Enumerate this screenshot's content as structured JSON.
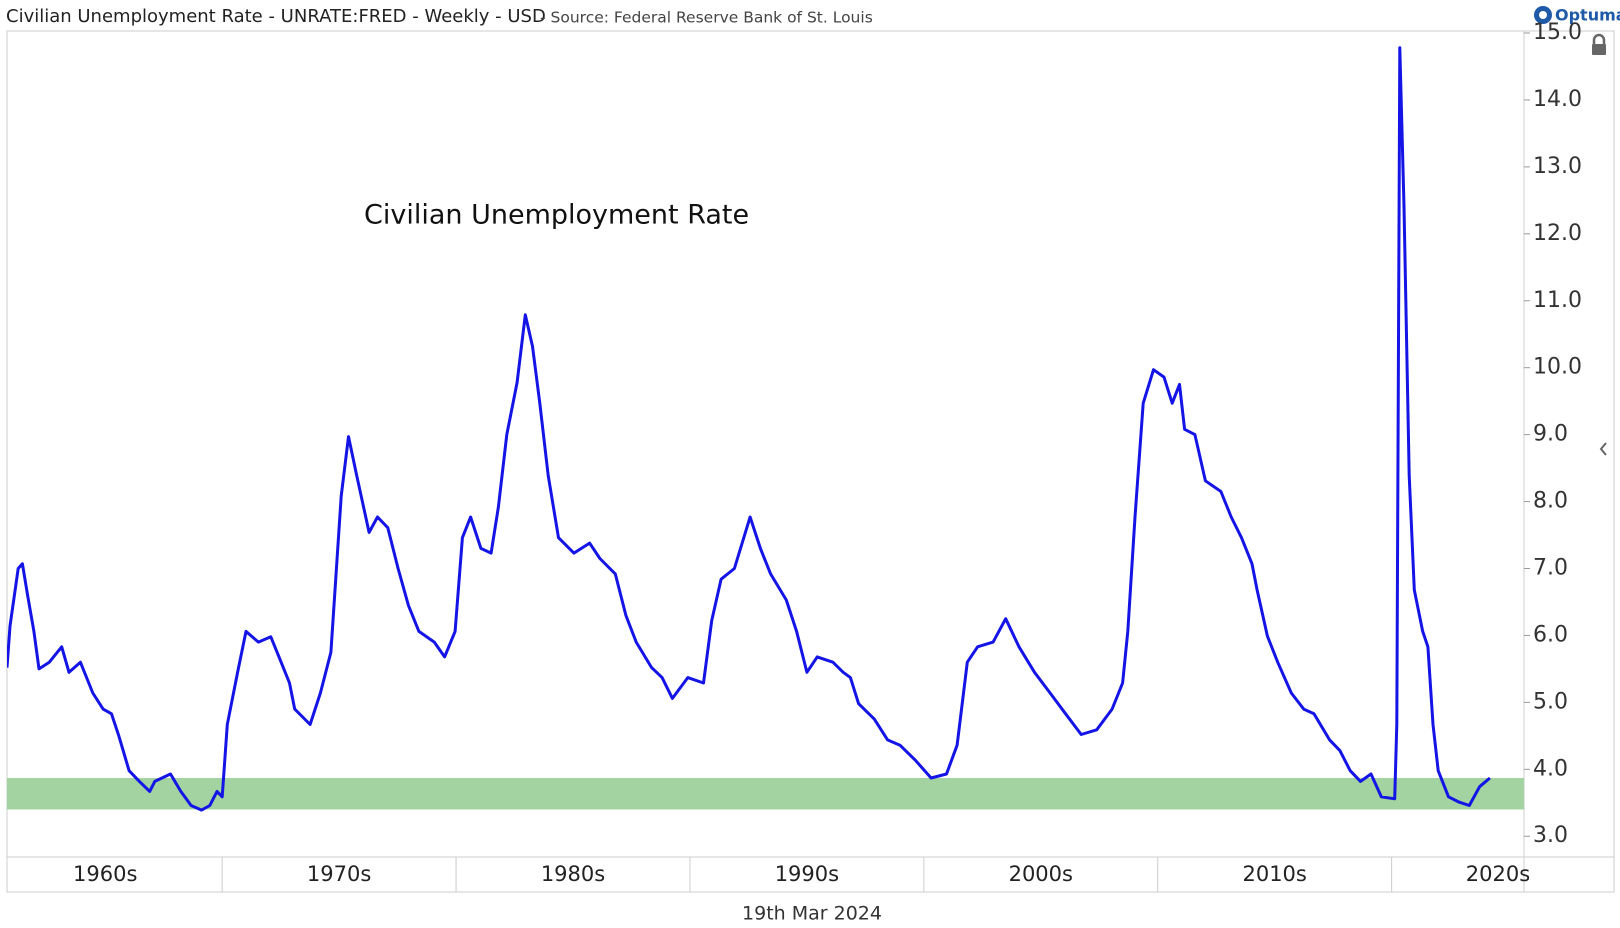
{
  "chart_data": {
    "type": "line",
    "title": "Civilian Unemployment Rate - UNRATE:FRED - Weekly - USD",
    "subtitle": "- Source: Federal Reserve Bank of St. Louis",
    "annotation": "Civilian Unemployment Rate",
    "date_label": "19th Mar 2024",
    "brand": "Optuma",
    "xlim": [
      1960.8,
      2025.66
    ],
    "xticks": [
      {
        "value": 1960,
        "label": "1960s"
      },
      {
        "value": 1970,
        "label": "1970s"
      },
      {
        "value": 1980,
        "label": "1980s"
      },
      {
        "value": 1990,
        "label": "1990s"
      },
      {
        "value": 2000,
        "label": "2000s"
      },
      {
        "value": 2010,
        "label": "2010s"
      },
      {
        "value": 2020,
        "label": "2020s"
      }
    ],
    "ylim": [
      2.69,
      15.03
    ],
    "yticks": [
      {
        "value": 3,
        "label": "3.0"
      },
      {
        "value": 4,
        "label": "4.0"
      },
      {
        "value": 5,
        "label": "5.0"
      },
      {
        "value": 6,
        "label": "6.0"
      },
      {
        "value": 7,
        "label": "7.0"
      },
      {
        "value": 8,
        "label": "8.0"
      },
      {
        "value": 9,
        "label": "9.0"
      },
      {
        "value": 10,
        "label": "10.0"
      },
      {
        "value": 11,
        "label": "11.0"
      },
      {
        "value": 12,
        "label": "12.0"
      },
      {
        "value": 13,
        "label": "13.0"
      },
      {
        "value": 14,
        "label": "14.0"
      },
      {
        "value": 15,
        "label": "15.0"
      }
    ],
    "band": [
      3.4,
      3.87
    ],
    "band_color": "#a2d3a1",
    "x": [
      1960.8,
      1960.93,
      1961.28,
      1961.46,
      1961.68,
      1961.95,
      1962.17,
      1962.61,
      1963.14,
      1963.45,
      1963.94,
      1964.47,
      1964.91,
      1965.27,
      1965.58,
      1966.02,
      1966.46,
      1966.9,
      1967.12,
      1967.79,
      1968.23,
      1968.67,
      1969.12,
      1969.47,
      1969.78,
      1970.0,
      1970.22,
      1970.66,
      1971.02,
      1971.55,
      1972.08,
      1972.43,
      1972.88,
      1973.1,
      1973.76,
      1974.2,
      1974.65,
      1975.09,
      1975.4,
      1975.75,
      1976.28,
      1976.64,
      1977.08,
      1977.52,
      1977.96,
      1978.41,
      1979.07,
      1979.51,
      1979.96,
      1980.27,
      1980.62,
      1981.06,
      1981.5,
      1981.81,
      1982.17,
      1982.61,
      1982.96,
      1983.27,
      1983.58,
      1983.94,
      1984.38,
      1985.04,
      1985.71,
      1986.15,
      1986.81,
      1987.26,
      1987.7,
      1988.36,
      1988.81,
      1989.25,
      1989.91,
      1990.58,
      1990.93,
      1991.33,
      1991.9,
      1992.57,
      1993.01,
      1993.45,
      1994.12,
      1994.56,
      1995.0,
      1995.44,
      1996.11,
      1996.55,
      1996.86,
      1997.21,
      1997.88,
      1998.45,
      1998.98,
      1999.65,
      2000.31,
      2000.97,
      2001.42,
      2001.86,
      2002.3,
      2002.96,
      2003.5,
      2004.07,
      2004.73,
      2005.4,
      2006.06,
      2006.73,
      2007.39,
      2008.05,
      2008.5,
      2008.72,
      2009.03,
      2009.38,
      2009.82,
      2010.27,
      2010.62,
      2010.93,
      2011.15,
      2011.59,
      2012.04,
      2012.7,
      2013.14,
      2013.58,
      2014.03,
      2014.25,
      2014.69,
      2015.13,
      2015.71,
      2016.24,
      2016.68,
      2017.35,
      2017.79,
      2018.23,
      2018.67,
      2019.12,
      2019.56,
      2020.13,
      2020.22,
      2020.35,
      2020.53,
      2020.75,
      2020.97,
      2021.33,
      2021.55,
      2021.77,
      2021.99,
      2022.43,
      2022.88,
      2023.32,
      2023.76,
      2024.2
    ],
    "series": [
      {
        "name": "Civilian Unemployment Rate",
        "color": "#1414e6",
        "values": [
          5.52,
          6.14,
          7.0,
          7.07,
          6.6,
          6.06,
          5.5,
          5.6,
          5.83,
          5.45,
          5.6,
          5.14,
          4.9,
          4.83,
          4.5,
          3.98,
          3.82,
          3.67,
          3.82,
          3.93,
          3.67,
          3.46,
          3.39,
          3.46,
          3.67,
          3.59,
          4.67,
          5.45,
          6.06,
          5.9,
          5.98,
          5.68,
          5.29,
          4.9,
          4.67,
          5.14,
          5.75,
          8.08,
          8.97,
          8.39,
          7.54,
          7.77,
          7.61,
          7.0,
          6.45,
          6.06,
          5.9,
          5.68,
          6.06,
          7.46,
          7.77,
          7.3,
          7.23,
          7.92,
          9.0,
          9.78,
          10.79,
          10.32,
          9.47,
          8.39,
          7.46,
          7.23,
          7.38,
          7.15,
          6.92,
          6.3,
          5.9,
          5.52,
          5.37,
          5.06,
          5.37,
          5.29,
          6.22,
          6.84,
          7.0,
          7.77,
          7.3,
          6.92,
          6.53,
          6.06,
          5.45,
          5.68,
          5.6,
          5.45,
          5.37,
          4.98,
          4.75,
          4.44,
          4.36,
          4.13,
          3.87,
          3.93,
          4.36,
          5.6,
          5.83,
          5.9,
          6.25,
          5.83,
          5.45,
          5.14,
          4.83,
          4.52,
          4.59,
          4.9,
          5.29,
          6.06,
          7.77,
          9.47,
          9.97,
          9.86,
          9.47,
          9.75,
          9.08,
          9.0,
          8.31,
          8.15,
          7.77,
          7.46,
          7.07,
          6.68,
          5.99,
          5.6,
          5.14,
          4.9,
          4.83,
          4.44,
          4.28,
          3.98,
          3.82,
          3.93,
          3.59,
          3.56,
          4.67,
          14.78,
          12.41,
          8.39,
          6.68,
          6.06,
          5.83,
          4.67,
          3.98,
          3.59,
          3.51,
          3.46,
          3.74,
          3.87
        ]
      }
    ]
  }
}
